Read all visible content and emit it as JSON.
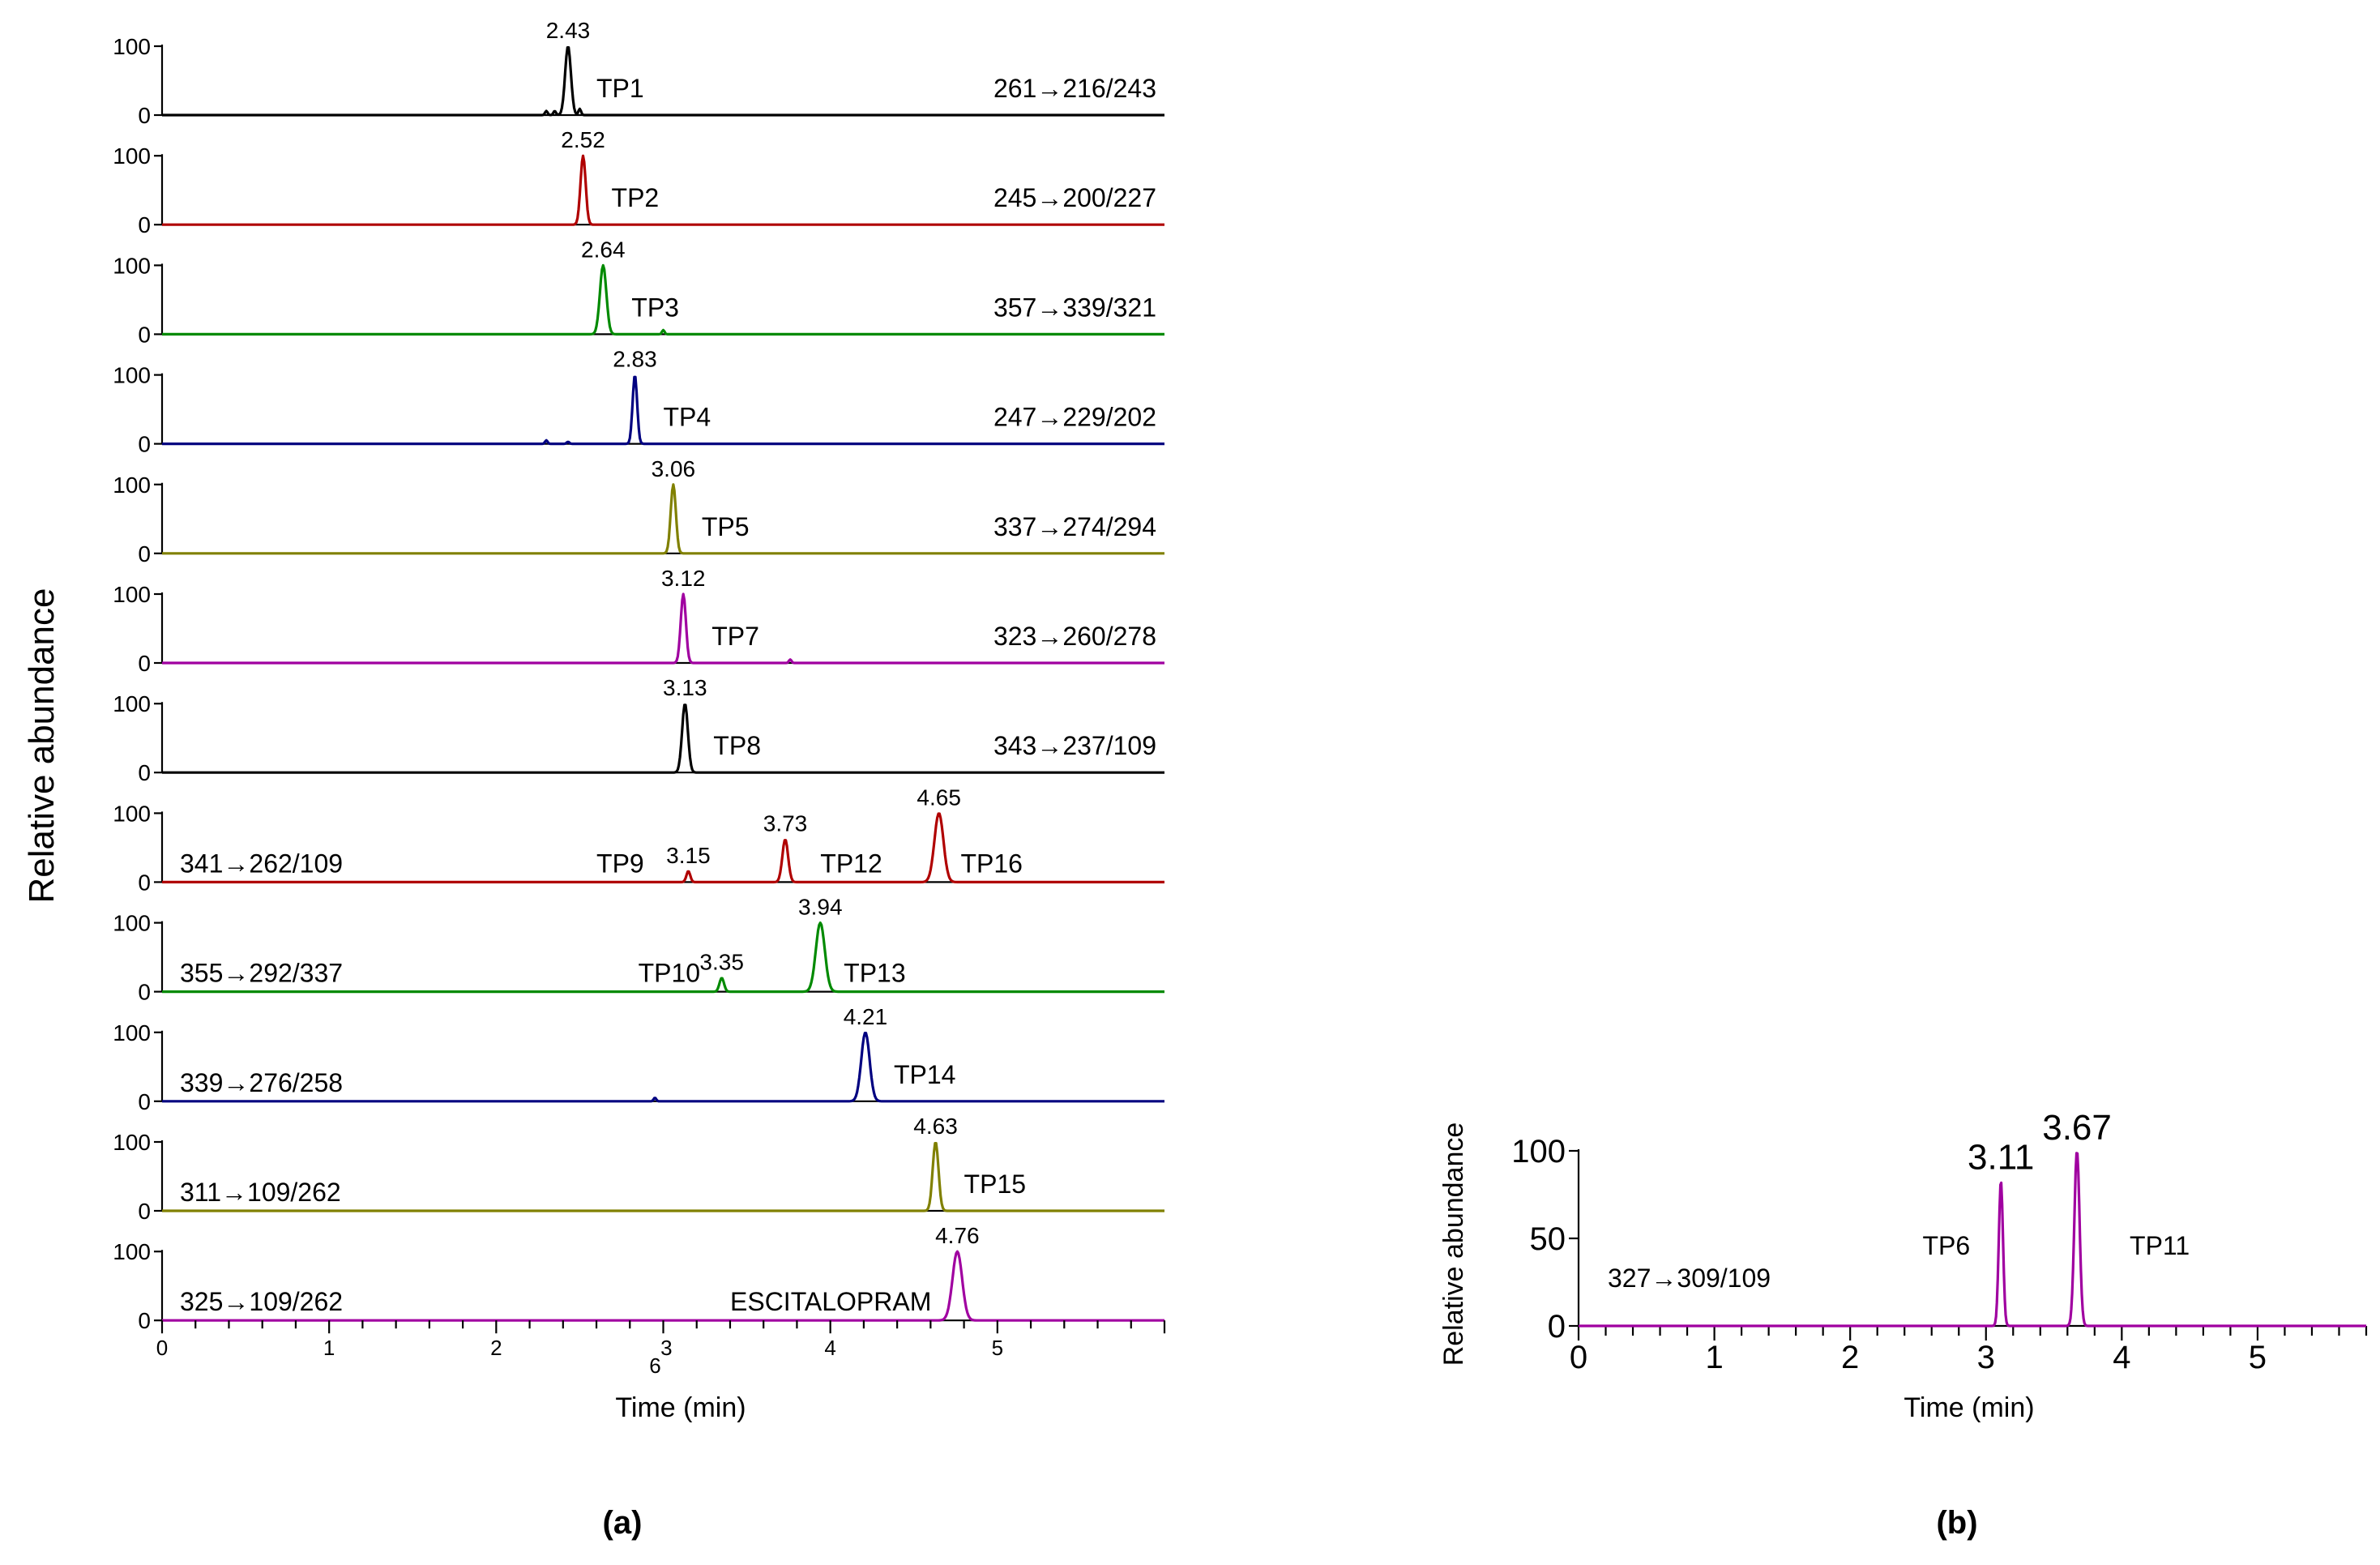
{
  "figure": {
    "panel_a_label": "(a)",
    "panel_b_label": "(b)"
  },
  "chart_data": [
    {
      "type": "line",
      "panel": "(a)",
      "xlabel": "Time (min)",
      "ylabel": "Relative abundance",
      "xlim": [
        0,
        6
      ],
      "ylim": [
        0,
        100
      ],
      "x_tick_labels": [
        "0",
        "1",
        "2",
        "6",
        "3",
        "4",
        "5"
      ],
      "y_tick_labels": [
        "0",
        "100"
      ],
      "series": [
        {
          "name": "TP1",
          "transition": "261→216/243",
          "rt_label": "2.43",
          "rt": 2.43,
          "height": 100,
          "width": 0.045,
          "color": "#000000",
          "minor": [
            [
              2.3,
              6
            ],
            [
              2.35,
              6
            ],
            [
              2.5,
              9
            ]
          ],
          "label_side": "right"
        },
        {
          "name": "TP2",
          "transition": "245→200/227",
          "rt_label": "2.52",
          "rt": 2.52,
          "height": 100,
          "width": 0.04,
          "color": "#b00000",
          "minor": [],
          "label_side": "right"
        },
        {
          "name": "TP3",
          "transition": "357→339/321",
          "rt_label": "2.64",
          "rt": 2.64,
          "height": 100,
          "width": 0.05,
          "color": "#008a00",
          "minor": [
            [
              3.0,
              6
            ]
          ],
          "label_side": "right"
        },
        {
          "name": "TP4",
          "transition": "247→229/202",
          "rt_label": "2.83",
          "rt": 2.83,
          "height": 100,
          "width": 0.035,
          "color": "#000080",
          "minor": [
            [
              2.3,
              5
            ],
            [
              2.43,
              3
            ]
          ],
          "label_side": "right"
        },
        {
          "name": "TP5",
          "transition": "337→274/294",
          "rt_label": "3.06",
          "rt": 3.06,
          "height": 100,
          "width": 0.04,
          "color": "#808000",
          "minor": [],
          "label_side": "right"
        },
        {
          "name": "TP7",
          "transition": "323→260/278",
          "rt_label": "3.12",
          "rt": 3.12,
          "height": 100,
          "width": 0.04,
          "color": "#a000a0",
          "minor": [
            [
              3.76,
              5
            ]
          ],
          "label_side": "right"
        },
        {
          "name": "TP8",
          "transition": "343→237/109",
          "rt_label": "3.13",
          "rt": 3.13,
          "height": 100,
          "width": 0.045,
          "color": "#000000",
          "minor": [],
          "label_side": "right"
        },
        {
          "name": "TP9, TP12, TP16",
          "transition": "341→262/109",
          "color": "#b00000",
          "transition_side": "left",
          "peaks": [
            {
              "rt": 3.15,
              "rt_label": "3.15",
              "height": 16,
              "width": 0.03
            },
            {
              "rt": 3.73,
              "rt_label": "3.73",
              "height": 62,
              "width": 0.045
            },
            {
              "rt": 4.65,
              "rt_label": "4.65",
              "height": 100,
              "width": 0.07
            }
          ],
          "names": [
            "TP9",
            "TP12",
            "TP16"
          ]
        },
        {
          "name": "TP10, TP13",
          "transition": "355→292/337",
          "color": "#008a00",
          "transition_side": "left",
          "peaks": [
            {
              "rt": 3.35,
              "rt_label": "3.35",
              "height": 20,
              "width": 0.035
            },
            {
              "rt": 3.94,
              "rt_label": "3.94",
              "height": 100,
              "width": 0.07
            }
          ],
          "names": [
            "TP10",
            "TP13"
          ]
        },
        {
          "name": "TP14",
          "transition": "339→276/258",
          "rt_label": "4.21",
          "rt": 4.21,
          "height": 100,
          "width": 0.065,
          "color": "#000080",
          "minor": [
            [
              2.95,
              5
            ]
          ],
          "label_side": "right",
          "transition_side": "left"
        },
        {
          "name": "TP15",
          "transition": "311→109/262",
          "rt_label": "4.63",
          "rt": 4.63,
          "height": 100,
          "width": 0.045,
          "color": "#808000",
          "minor": [],
          "label_side": "right",
          "transition_side": "left"
        },
        {
          "name": "ESCITALOPRAM",
          "transition": "325→109/262",
          "rt_label": "4.76",
          "rt": 4.76,
          "height": 100,
          "width": 0.075,
          "color": "#a000a0",
          "minor": [],
          "label_side": "left",
          "transition_side": "left"
        }
      ]
    },
    {
      "type": "line",
      "panel": "(b)",
      "xlabel": "Time (min)",
      "ylabel": "Relative abundance",
      "xlim": [
        0,
        5.8
      ],
      "ylim": [
        0,
        100
      ],
      "x_tick_labels": [
        "0",
        "1",
        "2",
        "3",
        "4",
        "5"
      ],
      "y_tick_labels": [
        "0",
        "50",
        "100"
      ],
      "transition": "327→309/109",
      "color": "#a000a0",
      "peaks": [
        {
          "name": "TP6",
          "rt": 3.11,
          "rt_label": "3.11",
          "height": 83,
          "width": 0.04
        },
        {
          "name": "TP11",
          "rt": 3.67,
          "rt_label": "3.67",
          "height": 100,
          "width": 0.05
        }
      ]
    }
  ]
}
